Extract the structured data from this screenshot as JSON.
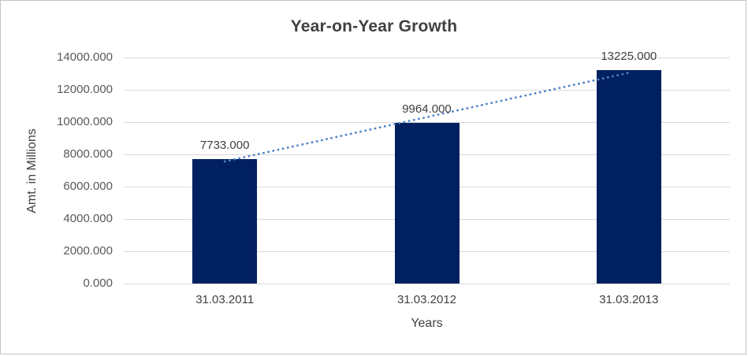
{
  "window": {
    "background": "#ffffff",
    "border_color": "#c3c3c3"
  },
  "chart_data": {
    "type": "bar",
    "title": "Year-on-Year Growth",
    "categories": [
      "31.03.2011",
      "31.03.2012",
      "31.03.2013"
    ],
    "values": [
      7733,
      9964,
      13225
    ],
    "data_labels": [
      "7733.000",
      "9964.000",
      "13225.000"
    ],
    "xlabel": "Years",
    "ylabel": "Amt. in Millions",
    "ylim": [
      0,
      14000
    ],
    "y_tick_values": [
      0,
      2000,
      4000,
      6000,
      8000,
      10000,
      12000,
      14000
    ],
    "y_tick_labels": [
      "0.000",
      "2000.000",
      "4000.000",
      "6000.000",
      "8000.000",
      "10000.000",
      "12000.000",
      "14000.000"
    ],
    "grid": true,
    "legend": "none",
    "colors": {
      "bar": "#012060",
      "trendline": "#4e82c8",
      "gridline": "#d9d9d9",
      "title_text": "#404040",
      "tick_text": "#595959",
      "label_text": "#404040"
    },
    "trendline": {
      "type": "linear",
      "style": "dotted"
    }
  }
}
